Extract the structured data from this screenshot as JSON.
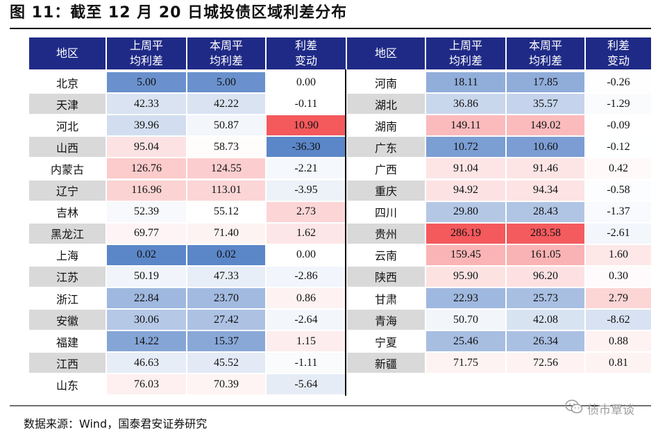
{
  "title": "图 11：截至 12 月 20 日城投债区域利差分布",
  "headers": {
    "region": "地区",
    "prev_line1": "上周平",
    "prev_line2": "均利差",
    "curr_line1": "本周平",
    "curr_line2": "均利差",
    "chg_line1": "利差",
    "chg_line2": "变动"
  },
  "left_rows": [
    {
      "region": "北京",
      "prev": "5.00",
      "curr": "5.00",
      "chg": "0.00"
    },
    {
      "region": "天津",
      "prev": "42.33",
      "curr": "42.22",
      "chg": "-0.11"
    },
    {
      "region": "河北",
      "prev": "39.96",
      "curr": "50.87",
      "chg": "10.90"
    },
    {
      "region": "山西",
      "prev": "95.04",
      "curr": "58.73",
      "chg": "-36.30"
    },
    {
      "region": "内蒙古",
      "prev": "126.76",
      "curr": "124.55",
      "chg": "-2.21"
    },
    {
      "region": "辽宁",
      "prev": "116.96",
      "curr": "113.01",
      "chg": "-3.95"
    },
    {
      "region": "吉林",
      "prev": "52.39",
      "curr": "55.12",
      "chg": "2.73"
    },
    {
      "region": "黑龙江",
      "prev": "69.77",
      "curr": "71.40",
      "chg": "1.62"
    },
    {
      "region": "上海",
      "prev": "0.02",
      "curr": "0.02",
      "chg": "0.00"
    },
    {
      "region": "江苏",
      "prev": "50.19",
      "curr": "47.33",
      "chg": "-2.86"
    },
    {
      "region": "浙江",
      "prev": "22.84",
      "curr": "23.70",
      "chg": "0.86"
    },
    {
      "region": "安徽",
      "prev": "30.06",
      "curr": "27.42",
      "chg": "-2.64"
    },
    {
      "region": "福建",
      "prev": "14.22",
      "curr": "15.37",
      "chg": "1.15"
    },
    {
      "region": "江西",
      "prev": "46.63",
      "curr": "45.52",
      "chg": "-1.11"
    },
    {
      "region": "山东",
      "prev": "76.03",
      "curr": "70.39",
      "chg": "-5.64"
    }
  ],
  "right_rows": [
    {
      "region": "河南",
      "prev": "18.11",
      "curr": "17.85",
      "chg": "-0.26"
    },
    {
      "region": "湖北",
      "prev": "36.86",
      "curr": "35.57",
      "chg": "-1.29"
    },
    {
      "region": "湖南",
      "prev": "149.11",
      "curr": "149.02",
      "chg": "-0.09"
    },
    {
      "region": "广东",
      "prev": "10.72",
      "curr": "10.60",
      "chg": "-0.12"
    },
    {
      "region": "广西",
      "prev": "91.04",
      "curr": "91.46",
      "chg": "0.42"
    },
    {
      "region": "重庆",
      "prev": "94.92",
      "curr": "94.34",
      "chg": "-0.58"
    },
    {
      "region": "四川",
      "prev": "29.80",
      "curr": "28.43",
      "chg": "-1.37"
    },
    {
      "region": "贵州",
      "prev": "286.19",
      "curr": "283.58",
      "chg": "-2.61"
    },
    {
      "region": "云南",
      "prev": "159.45",
      "curr": "161.05",
      "chg": "1.60"
    },
    {
      "region": "陕西",
      "prev": "95.90",
      "curr": "96.20",
      "chg": "0.30"
    },
    {
      "region": "甘肃",
      "prev": "22.93",
      "curr": "25.73",
      "chg": "2.79"
    },
    {
      "region": "青海",
      "prev": "50.70",
      "curr": "42.08",
      "chg": "-8.62"
    },
    {
      "region": "宁夏",
      "prev": "25.46",
      "curr": "26.34",
      "chg": "0.88"
    },
    {
      "region": "新疆",
      "prev": "71.75",
      "curr": "72.56",
      "chg": "0.81"
    }
  ],
  "source": "数据来源：Wind，国泰君安证券研究",
  "watermark": "债市覃谈",
  "colors": {
    "header_bg": "#1f2a86",
    "low": "#5b86c8",
    "mid": "#ffffff",
    "high": "#f4595c",
    "stripe_gray": "#d9d9d9"
  }
}
